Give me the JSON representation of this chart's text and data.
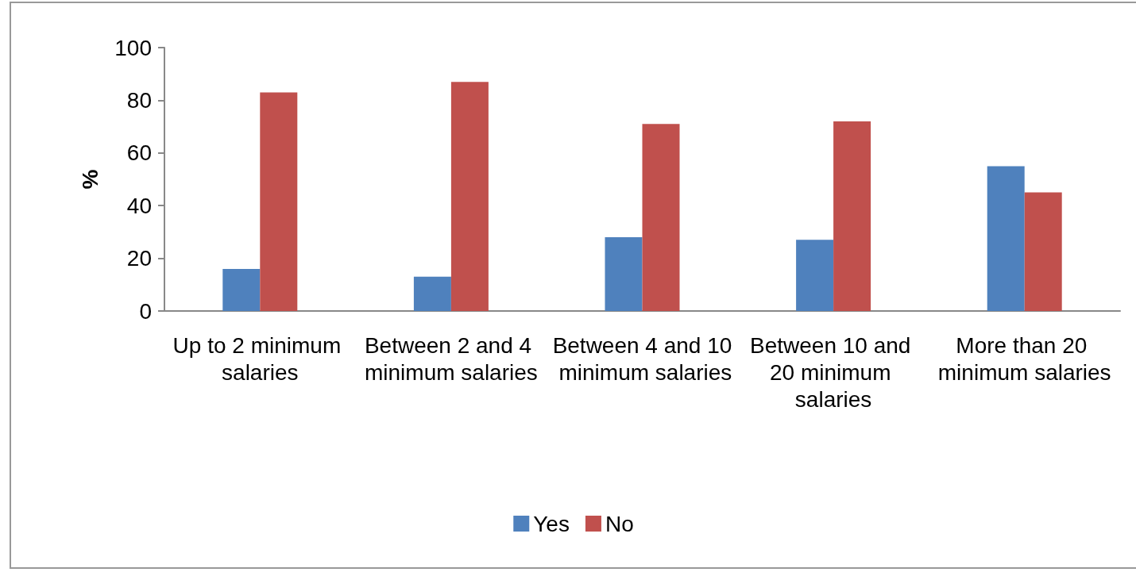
{
  "chart_data": {
    "type": "bar",
    "ylabel": "%",
    "categories": [
      "Up to 2 minimum salaries",
      "Between 2 and 4 minimum salaries",
      "Between 4 and 10 minimum salaries",
      "Between 10 and 20 minimum salaries",
      "More than 20 minimum salaries"
    ],
    "series": [
      {
        "name": "Yes",
        "color": "#4f81bd",
        "values": [
          16,
          13,
          28,
          27,
          55
        ]
      },
      {
        "name": "No",
        "color": "#c0504d",
        "values": [
          83,
          87,
          71,
          72,
          45
        ]
      }
    ],
    "ylim": [
      0,
      100
    ],
    "yticks": [
      0,
      20,
      40,
      60,
      80,
      100
    ],
    "grid": false,
    "legend": "bottom"
  }
}
